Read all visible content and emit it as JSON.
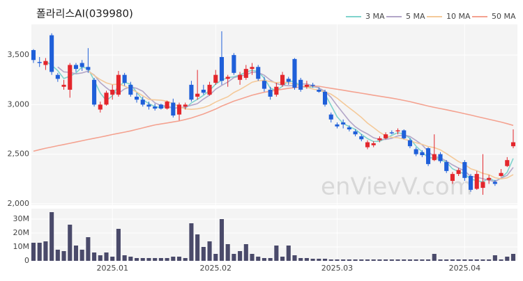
{
  "chart_data": {
    "type": "candlestick",
    "title": "폴라리스AI(039980)",
    "watermark": "enVievV.com",
    "legend": "top-right",
    "grid": true,
    "up_color": "#e3262c",
    "down_color": "#1f5fd9",
    "categories": [
      null,
      null,
      null,
      null,
      null,
      null,
      null,
      null,
      null,
      null,
      null,
      null,
      null,
      "2025.01",
      null,
      null,
      null,
      null,
      null,
      null,
      null,
      null,
      null,
      null,
      null,
      null,
      null,
      null,
      null,
      null,
      "2025.02",
      null,
      null,
      null,
      null,
      null,
      null,
      null,
      null,
      null,
      null,
      null,
      null,
      null,
      null,
      null,
      null,
      null,
      null,
      null,
      "2025.03",
      null,
      null,
      null,
      null,
      null,
      null,
      null,
      null,
      null,
      null,
      null,
      null,
      null,
      null,
      null,
      null,
      null,
      null,
      null,
      null,
      "2025.04",
      null,
      null,
      null,
      null,
      null,
      null,
      null,
      null
    ],
    "open": [
      3550,
      3430,
      3400,
      3700,
      3300,
      3180,
      3150,
      3400,
      3420,
      3380,
      3250,
      2950,
      3000,
      3100,
      3100,
      3300,
      3200,
      3080,
      3050,
      3000,
      2980,
      3000,
      2960,
      3020,
      2900,
      2980,
      3200,
      3080,
      3150,
      3100,
      3220,
      3480,
      3260,
      3500,
      3250,
      3270,
      3360,
      3380,
      3240,
      3150,
      3100,
      3200,
      3260,
      3460,
      3250,
      3180,
      3200,
      3150,
      3130,
      2900,
      2800,
      2820,
      2770,
      2730,
      2680,
      2570,
      2590,
      2640,
      2660,
      2720,
      2730,
      2740,
      2640,
      2550,
      2520,
      2560,
      2440,
      2500,
      2420,
      2230,
      2300,
      2420,
      2280,
      2150,
      2160,
      2240,
      2220,
      2280,
      2380,
      2580
    ],
    "high": [
      3560,
      3480,
      3470,
      3720,
      3320,
      3250,
      3420,
      3420,
      3450,
      3570,
      3270,
      3030,
      3140,
      3200,
      3340,
      3320,
      3230,
      3120,
      3080,
      3030,
      3010,
      3010,
      3040,
      3060,
      3020,
      3020,
      3240,
      3350,
      3200,
      3230,
      3350,
      3740,
      3300,
      3520,
      3330,
      3400,
      3420,
      3400,
      3280,
      3180,
      3220,
      3330,
      3280,
      3470,
      3270,
      3240,
      3220,
      3170,
      3150,
      2920,
      2820,
      2850,
      2790,
      2750,
      2700,
      2640,
      2630,
      2680,
      2720,
      2740,
      2760,
      2750,
      2660,
      2570,
      2540,
      2570,
      2700,
      2520,
      2440,
      2320,
      2360,
      2440,
      2300,
      2330,
      2500,
      2290,
      2240,
      2350,
      2470,
      2750
    ],
    "low": [
      3420,
      3380,
      3350,
      3300,
      3230,
      3150,
      3070,
      3330,
      3340,
      3320,
      2980,
      2920,
      2990,
      3050,
      3080,
      3190,
      3080,
      3020,
      2980,
      2950,
      2940,
      2950,
      2950,
      2870,
      2840,
      2950,
      3030,
      3050,
      3100,
      3090,
      3200,
      3200,
      3180,
      3300,
      3200,
      3250,
      3300,
      3240,
      3130,
      3050,
      3080,
      3180,
      3200,
      3150,
      3130,
      3160,
      3170,
      3120,
      2980,
      2820,
      2760,
      2760,
      2730,
      2680,
      2630,
      2550,
      2570,
      2620,
      2650,
      2700,
      2700,
      2650,
      2560,
      2480,
      2470,
      2380,
      2430,
      2410,
      2310,
      2200,
      2280,
      2230,
      2120,
      2140,
      2090,
      2200,
      2180,
      2270,
      2370,
      2560
    ],
    "close": [
      3450,
      3420,
      3440,
      3330,
      3260,
      3200,
      3400,
      3360,
      3380,
      3350,
      3000,
      3000,
      3120,
      3150,
      3300,
      3220,
      3100,
      3050,
      3000,
      2980,
      2960,
      2960,
      3030,
      2890,
      3000,
      3000,
      3050,
      3110,
      3120,
      3200,
      3300,
      3240,
      3280,
      3320,
      3300,
      3360,
      3380,
      3260,
      3160,
      3080,
      3180,
      3300,
      3230,
      3170,
      3150,
      3200,
      3190,
      3130,
      3000,
      2850,
      2780,
      2800,
      2750,
      2700,
      2650,
      2620,
      2610,
      2660,
      2700,
      2710,
      2740,
      2660,
      2580,
      2500,
      2490,
      2400,
      2500,
      2430,
      2330,
      2300,
      2340,
      2260,
      2140,
      2300,
      2220,
      2260,
      2200,
      2310,
      2440,
      2620
    ],
    "ylim": [
      1985,
      3810
    ],
    "yticks": [
      {
        "value": 2000,
        "label": "2,000"
      },
      {
        "value": 2500,
        "label": "2,500"
      },
      {
        "value": 3000,
        "label": "3,000"
      },
      {
        "value": 3500,
        "label": "3,500"
      }
    ],
    "series": [
      {
        "name": "3 MA",
        "color": "#7fd3cc",
        "values": [
          null,
          null,
          3437,
          3397,
          3343,
          3263,
          3287,
          3320,
          3380,
          3363,
          3243,
          3117,
          3040,
          3090,
          3190,
          3223,
          3207,
          3123,
          3050,
          3010,
          2980,
          2967,
          2983,
          2960,
          2973,
          2963,
          3017,
          3053,
          3093,
          3143,
          3207,
          3247,
          3273,
          3280,
          3300,
          3327,
          3347,
          3333,
          3267,
          3167,
          3140,
          3187,
          3237,
          3233,
          3183,
          3173,
          3180,
          3173,
          3107,
          2993,
          2877,
          2810,
          2777,
          2750,
          2700,
          2657,
          2627,
          2630,
          2657,
          2690,
          2717,
          2703,
          2660,
          2580,
          2523,
          2463,
          2463,
          2443,
          2420,
          2353,
          2323,
          2300,
          2247,
          2233,
          2220,
          2260,
          2227,
          2257,
          2317,
          2457
        ]
      },
      {
        "name": "5 MA",
        "color": "#b3a6c8",
        "values": [
          null,
          null,
          null,
          null,
          3380,
          3330,
          3326,
          3310,
          3320,
          3338,
          3298,
          3222,
          3170,
          3124,
          3114,
          3158,
          3178,
          3164,
          3134,
          3070,
          3018,
          2990,
          2986,
          2964,
          2968,
          2976,
          2994,
          3010,
          3056,
          3096,
          3156,
          3194,
          3228,
          3272,
          3288,
          3300,
          3328,
          3324,
          3296,
          3248,
          3212,
          3196,
          3190,
          3192,
          3206,
          3210,
          3188,
          3168,
          3134,
          3074,
          2990,
          2912,
          2836,
          2776,
          2736,
          2704,
          2666,
          2648,
          2648,
          2660,
          2684,
          2694,
          2678,
          2638,
          2594,
          2526,
          2474,
          2464,
          2430,
          2392,
          2360,
          2332,
          2274,
          2268,
          2252,
          2236,
          2224,
          2258,
          2286,
          2366
        ]
      },
      {
        "name": "10 MA",
        "color": "#f4c999",
        "values": [
          null,
          null,
          null,
          null,
          null,
          null,
          null,
          null,
          null,
          3339,
          3294,
          3252,
          3220,
          3202,
          3206,
          3188,
          3158,
          3127,
          3089,
          3052,
          3048,
          3044,
          3035,
          3009,
          2979,
          2957,
          2952,
          2958,
          2970,
          2992,
          3026,
          3054,
          3079,
          3122,
          3152,
          3188,
          3226,
          3241,
          3245,
          3233,
          3221,
          3227,
          3222,
          3207,
          3192,
          3176,
          3157,
          3144,
          3128,
          3105,
          3065,
          3015,
          2967,
          2921,
          2871,
          2813,
          2768,
          2721,
          2684,
          2670,
          2666,
          2652,
          2635,
          2615,
          2599,
          2577,
          2566,
          2543,
          2506,
          2465,
          2425,
          2397,
          2353,
          2333,
          2306,
          2292,
          2262,
          2250,
          2261,
          2293
        ]
      },
      {
        "name": "50 MA",
        "color": "#f4a290",
        "values": [
          2530,
          2545,
          2560,
          2572,
          2585,
          2597,
          2610,
          2622,
          2635,
          2648,
          2660,
          2672,
          2685,
          2698,
          2710,
          2722,
          2735,
          2750,
          2765,
          2780,
          2795,
          2805,
          2815,
          2825,
          2835,
          2850,
          2865,
          2885,
          2905,
          2930,
          2955,
          2985,
          3010,
          3035,
          3055,
          3075,
          3095,
          3110,
          3125,
          3135,
          3145,
          3155,
          3165,
          3172,
          3178,
          3184,
          3188,
          3185,
          3175,
          3165,
          3155,
          3145,
          3135,
          3125,
          3115,
          3105,
          3095,
          3085,
          3075,
          3065,
          3055,
          3042,
          3030,
          3015,
          3000,
          2985,
          2972,
          2960,
          2948,
          2935,
          2922,
          2908,
          2895,
          2880,
          2866,
          2852,
          2838,
          2824,
          2808,
          2790
        ]
      }
    ],
    "volume": {
      "color": "#4a4a6a",
      "ylim": [
        0,
        37500000
      ],
      "yticks": [
        0,
        {
          "value": 10000000,
          "label": "10M"
        },
        {
          "value": 20000000,
          "label": "20M"
        },
        {
          "value": 30000000,
          "label": "30M"
        }
      ],
      "values": [
        13000000,
        13000000,
        14000000,
        35000000,
        8000000,
        7000000,
        26000000,
        11000000,
        8000000,
        17000000,
        6000000,
        4000000,
        6000000,
        3000000,
        23000000,
        4000000,
        3000000,
        2000000,
        2000000,
        2000000,
        2000000,
        2000000,
        2000000,
        3000000,
        3000000,
        2000000,
        27000000,
        19000000,
        10000000,
        14000000,
        5000000,
        30000000,
        12000000,
        5000000,
        7000000,
        12000000,
        5000000,
        3000000,
        2000000,
        2000000,
        11000000,
        3000000,
        11000000,
        4000000,
        2000000,
        2000000,
        1500000,
        1500000,
        1500000,
        1000000,
        1000000,
        1000000,
        1000000,
        1000000,
        1000000,
        1000000,
        1000000,
        1000000,
        1000000,
        1000000,
        1000000,
        1000000,
        1000000,
        1000000,
        1000000,
        1000000,
        5000000,
        1000000,
        1000000,
        1000000,
        1000000,
        1000000,
        1000000,
        1000000,
        1000000,
        1000000,
        4000000,
        1000000,
        3000000,
        5000000
      ]
    }
  }
}
